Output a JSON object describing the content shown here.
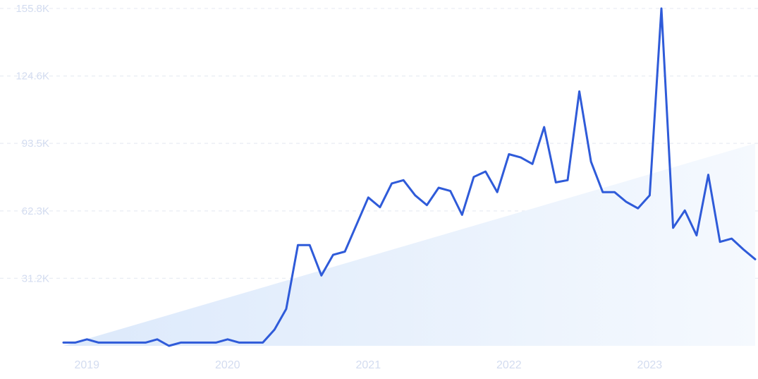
{
  "colors": {
    "line": "#2f5bd9",
    "trend_fill_top": "#dce9fb",
    "grid": "#e4e8f0",
    "tick_label": "#d3dcf0"
  },
  "chart_data": {
    "type": "line",
    "title": "",
    "xlabel": "",
    "ylabel": "",
    "grid": true,
    "ylim": [
      0,
      155800
    ],
    "y_ticks": [
      {
        "value": 155800,
        "label": "155.8K"
      },
      {
        "value": 124600,
        "label": "124.6K"
      },
      {
        "value": 93500,
        "label": "93.5K"
      },
      {
        "value": 62300,
        "label": "62.3K"
      },
      {
        "value": 31200,
        "label": "31.2K"
      }
    ],
    "x_ticks": [
      {
        "value": "2019-01",
        "label": "2019"
      },
      {
        "value": "2020-01",
        "label": "2020"
      },
      {
        "value": "2021-01",
        "label": "2021"
      },
      {
        "value": "2022-01",
        "label": "2022"
      },
      {
        "value": "2023-01",
        "label": "2023"
      }
    ],
    "x": [
      "2018-11",
      "2018-12",
      "2019-01",
      "2019-02",
      "2019-03",
      "2019-04",
      "2019-05",
      "2019-06",
      "2019-07",
      "2019-08",
      "2019-09",
      "2019-10",
      "2019-11",
      "2019-12",
      "2020-01",
      "2020-02",
      "2020-03",
      "2020-04",
      "2020-05",
      "2020-06",
      "2020-07",
      "2020-08",
      "2020-09",
      "2020-10",
      "2020-11",
      "2020-12",
      "2021-01",
      "2021-02",
      "2021-03",
      "2021-04",
      "2021-05",
      "2021-06",
      "2021-07",
      "2021-08",
      "2021-09",
      "2021-10",
      "2021-11",
      "2021-12",
      "2022-01",
      "2022-02",
      "2022-03",
      "2022-04",
      "2022-05",
      "2022-06",
      "2022-07",
      "2022-08",
      "2022-09",
      "2022-10",
      "2022-11",
      "2022-12",
      "2023-01",
      "2023-02",
      "2023-03",
      "2023-04",
      "2023-05",
      "2023-06",
      "2023-07",
      "2023-08",
      "2023-09",
      "2023-10"
    ],
    "series": [
      {
        "values": [
          1500,
          1500,
          3000,
          1500,
          1500,
          1500,
          1500,
          1500,
          3000,
          0,
          1500,
          1500,
          1500,
          1500,
          3000,
          1500,
          1500,
          1500,
          7500,
          17000,
          46500,
          46500,
          32500,
          42000,
          43500,
          56000,
          68500,
          64000,
          75000,
          76500,
          69500,
          65000,
          73000,
          71500,
          60500,
          78000,
          80500,
          71000,
          88500,
          87000,
          84000,
          101000,
          75500,
          76500,
          117500,
          85000,
          71000,
          71000,
          66500,
          63500,
          69500,
          155800,
          54500,
          62500,
          51000,
          79000,
          48000,
          49500,
          44500,
          40000
        ]
      }
    ],
    "trend": {
      "start": 0,
      "end": 93500
    }
  }
}
